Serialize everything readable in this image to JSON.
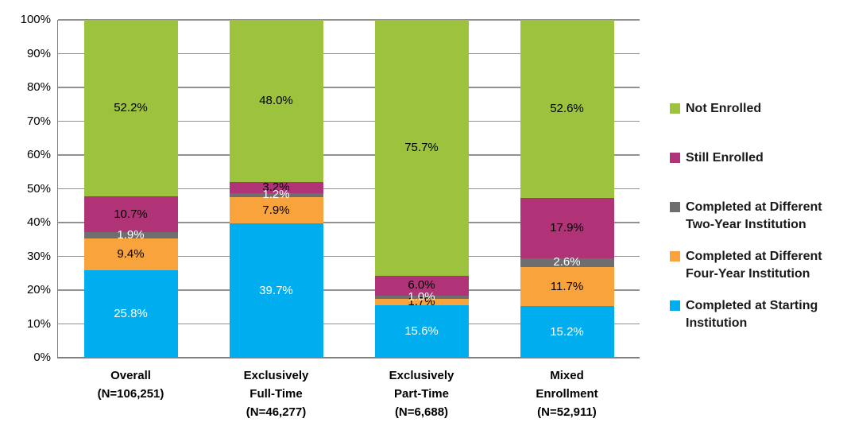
{
  "chart_data": {
    "type": "bar",
    "stacked": true,
    "orientation": "vertical",
    "title": "",
    "xlabel": "",
    "ylabel": "",
    "ylim": [
      0,
      100
    ],
    "grid": true,
    "categories": [
      "Overall\n(N=106,251)",
      "Exclusively\nFull-Time\n(N=46,277)",
      "Exclusively\nPart-Time\n(N=6,688)",
      "Mixed\nEnrollment\n(N=52,911)"
    ],
    "series": [
      {
        "name": "Completed at Starting Institution",
        "color": "#00AEEF",
        "values": [
          25.8,
          39.7,
          15.6,
          15.2
        ],
        "labels": [
          "25.8%",
          "39.7%",
          "15.6%",
          "15.2%"
        ],
        "label_color": "#FFFFFF",
        "label_z": 2
      },
      {
        "name": "Completed at Different Four-Year Institution",
        "color": "#F8A33C",
        "values": [
          9.4,
          7.9,
          1.7,
          11.7
        ],
        "labels": [
          "9.4%",
          "7.9%",
          "1.7%",
          "11.7%"
        ],
        "label_color": "#000000",
        "label_z": 2
      },
      {
        "name": "Completed at Different Two-Year Institution",
        "color": "#6E6E6E",
        "values": [
          1.9,
          1.2,
          1.0,
          2.6
        ],
        "labels": [
          "1.9%",
          "1.2%",
          "1.0%",
          "2.6%"
        ],
        "label_color": "#FFFFFF",
        "label_z": 3
      },
      {
        "name": "Still Enrolled",
        "color": "#B03378",
        "values": [
          10.7,
          3.2,
          6.0,
          17.9
        ],
        "labels": [
          "10.7%",
          "3.2%",
          "6.0%",
          "17.9%"
        ],
        "label_color": "#000000",
        "label_z": 2
      },
      {
        "name": "Not Enrolled",
        "color": "#9CC23E",
        "values": [
          52.2,
          48.0,
          75.7,
          52.6
        ],
        "labels": [
          "52.2%",
          "48.0%",
          "75.7%",
          "52.6%"
        ],
        "label_color": "#000000",
        "label_z": 1
      }
    ],
    "y_axis": {
      "ticks": [
        "100%",
        "90%",
        "80%",
        "70%",
        "60%",
        "50%",
        "40%",
        "30%",
        "20%",
        "10%",
        "0%"
      ]
    },
    "legend": {
      "position": "right",
      "items": [
        {
          "label": "Not Enrolled",
          "color": "#9CC23E"
        },
        {
          "label": "Still Enrolled",
          "color": "#B03378"
        },
        {
          "label": "Completed at Different\nTwo-Year Institution",
          "color": "#6E6E6E"
        },
        {
          "label": "Completed at Different\nFour-Year Institution",
          "color": "#F8A33C"
        },
        {
          "label": "Completed at Starting\nInstitution",
          "color": "#00AEEF"
        }
      ]
    },
    "style": {
      "gridline_color": "#919191",
      "axis_color": "#808080",
      "background": "#FFFFFF"
    }
  }
}
